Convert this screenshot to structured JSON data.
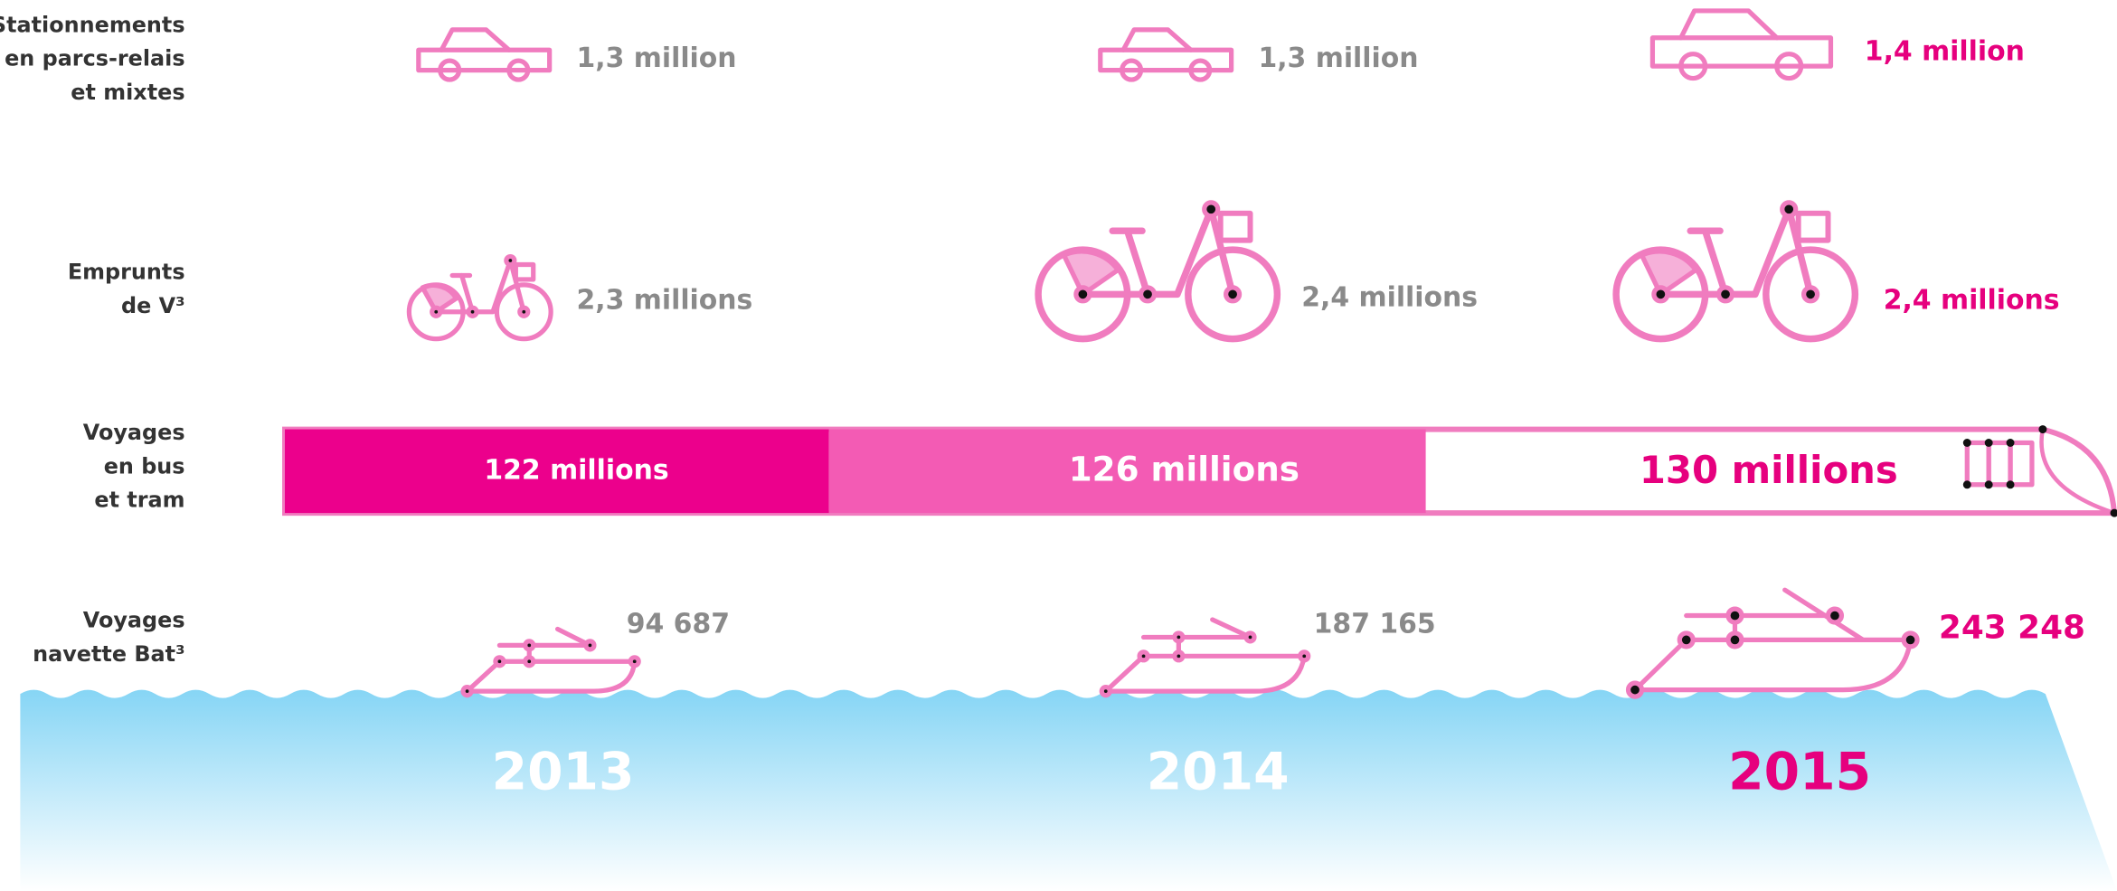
{
  "rows": [
    {
      "label": [
        "Stationnements",
        "en parcs-relais",
        "et mixtes"
      ],
      "values": [
        "1,3 million",
        "1,3 million",
        "1,4 million"
      ]
    },
    {
      "label": [
        "Emprunts",
        "de V³"
      ],
      "values": [
        "2,3 millions",
        "2,4 millions",
        "2,4 millions"
      ]
    },
    {
      "label": [
        "Voyages",
        "en bus",
        "et tram"
      ],
      "values": [
        "122 millions",
        "126 millions",
        "130 millions"
      ]
    },
    {
      "label": [
        "Voyages",
        "navette Bat³"
      ],
      "values": [
        "94 687",
        "187 165",
        "243 248"
      ]
    }
  ],
  "years": [
    "2013",
    "2014",
    "2015"
  ]
}
